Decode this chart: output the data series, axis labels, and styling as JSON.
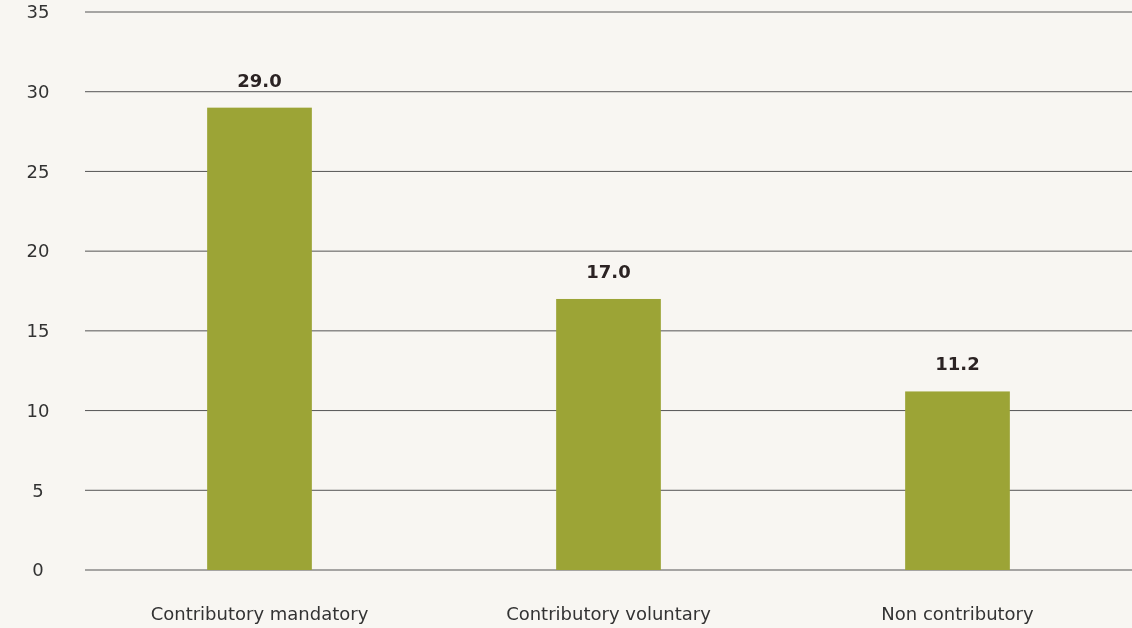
{
  "chart_data": {
    "type": "bar",
    "categories": [
      "Contributory mandatory",
      "Contributory voluntary",
      "Non contributory"
    ],
    "values": [
      29.0,
      17.0,
      11.2
    ],
    "value_labels": [
      "29.0",
      "17.0",
      "11.2"
    ],
    "color": "#9ca436",
    "ylim": [
      0,
      35
    ],
    "yticks": [
      0,
      5,
      10,
      15,
      20,
      25,
      30,
      35
    ],
    "grid": "y"
  }
}
